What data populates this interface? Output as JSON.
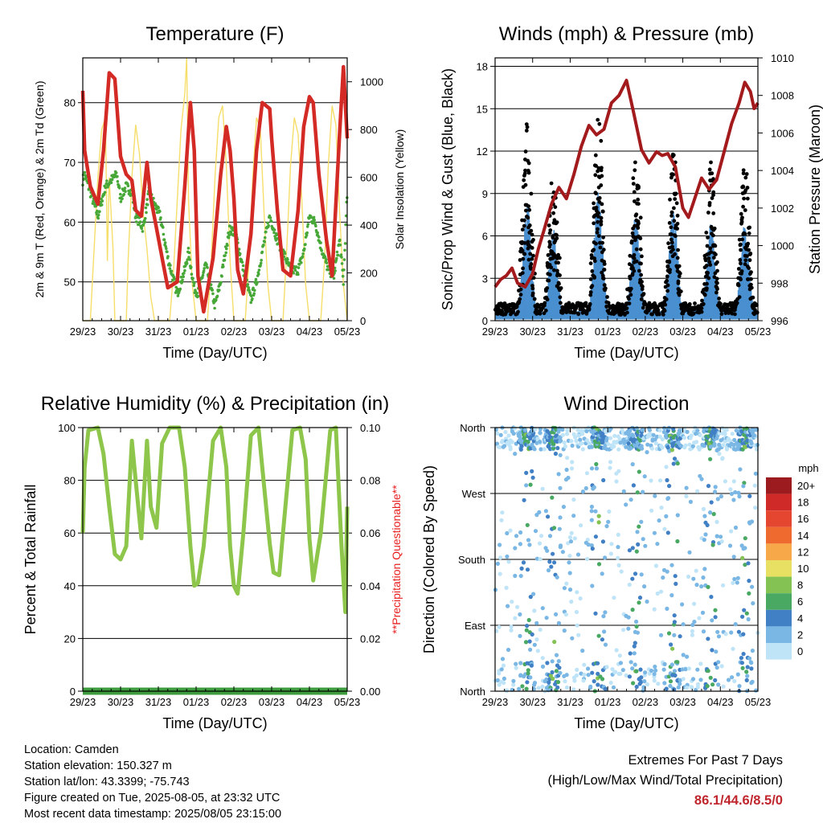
{
  "footer": {
    "location": "Location: Camden",
    "elevation": "Station elevation: 150.327 m",
    "latlon": "Station lat/lon: 43.3399; -75.743",
    "created": "Figure created on Tue, 2025-08-05, at 23:32 UTC",
    "recent": "Most recent data timestamp: 2025/08/05 23:15:00"
  },
  "extremes": {
    "title": "Extremes For Past 7 Days",
    "subtitle": "(High/Low/Max Wind/Total Precipitation)",
    "values": "86.1/44.6/8.5/0"
  },
  "chart_data": [
    {
      "type": "line",
      "title": "Temperature (F)",
      "xlabel": "Time (Day/UTC)",
      "ylabel": "2m & 9m T (Red, Orange) & 2m Td (Green)",
      "ylabel_right": "Solar Insolation (Yellow)",
      "x_ticks": [
        "29/23",
        "30/23",
        "31/23",
        "01/23",
        "02/23",
        "03/23",
        "04/23",
        "05/23"
      ],
      "xlim": [
        0,
        7
      ],
      "ylim": [
        43.5,
        87.5
      ],
      "y_ticks": [
        50,
        60,
        70,
        80
      ],
      "ylim_right": [
        0,
        1100
      ],
      "y_ticks_right": [
        0,
        200,
        400,
        600,
        800,
        1000
      ],
      "grid": "horizontal",
      "series": [
        {
          "name": "2m & 9m T",
          "color": "#d42a25",
          "x": [
            0,
            0.05,
            0.2,
            0.4,
            0.55,
            0.7,
            0.85,
            1.0,
            1.15,
            1.3,
            1.4,
            1.55,
            1.7,
            1.8,
            1.95,
            2.1,
            2.25,
            2.5,
            2.7,
            2.85,
            2.95,
            3.05,
            3.2,
            3.45,
            3.65,
            3.8,
            3.9,
            4.0,
            4.1,
            4.25,
            4.45,
            4.6,
            4.75,
            4.95,
            5.0,
            5.15,
            5.3,
            5.5,
            5.7,
            5.85,
            6.0,
            6.1,
            6.25,
            6.45,
            6.6,
            6.8,
            6.9,
            7.0
          ],
          "y": [
            82,
            72,
            66,
            63,
            72,
            85,
            84,
            71,
            68,
            67,
            62,
            61,
            70,
            64,
            59,
            54,
            49,
            50,
            66,
            80,
            72,
            51,
            45,
            54,
            68,
            76,
            72,
            64,
            52,
            48,
            58,
            72,
            80,
            79,
            74,
            62,
            52,
            51,
            62,
            76,
            81,
            80,
            68,
            57,
            51,
            75,
            86,
            74
          ]
        },
        {
          "name": "2m Td",
          "color": "#47a838",
          "x": [
            0,
            0.05,
            0.2,
            0.4,
            0.6,
            0.75,
            0.9,
            1.0,
            1.15,
            1.3,
            1.4,
            1.6,
            1.75,
            1.9,
            2.05,
            2.25,
            2.5,
            2.7,
            2.8,
            2.95,
            3.05,
            3.25,
            3.5,
            3.65,
            3.8,
            3.9,
            4.05,
            4.25,
            4.45,
            4.6,
            4.75,
            4.95,
            5.0,
            5.15,
            5.3,
            5.5,
            5.7,
            5.85,
            6.0,
            6.15,
            6.3,
            6.5,
            6.65,
            6.8,
            6.9,
            7.0
          ],
          "y": [
            67,
            68,
            65,
            61,
            66,
            67,
            68,
            64,
            66,
            65,
            61,
            59,
            65,
            63,
            61,
            54,
            48,
            52,
            55,
            49,
            48,
            53,
            46,
            50,
            56,
            59,
            58,
            52,
            47,
            50,
            55,
            61,
            60,
            57,
            55,
            52,
            52,
            55,
            61,
            60,
            56,
            52,
            51,
            57,
            50,
            65
          ]
        },
        {
          "name": "Solar Insolation",
          "color": "#f6de6a",
          "axis": "right",
          "x": [
            0,
            0.15,
            0.2,
            0.3,
            0.4,
            0.5,
            0.6,
            0.65,
            0.7,
            0.8,
            0.85,
            1.0,
            1.15,
            1.2,
            1.3,
            1.4,
            1.5,
            1.6,
            1.7,
            1.8,
            1.9,
            2.0,
            2.2,
            2.3,
            2.4,
            2.5,
            2.6,
            2.7,
            2.75,
            2.8,
            2.9,
            3.0,
            3.2,
            3.3,
            3.4,
            3.5,
            3.6,
            3.7,
            3.8,
            3.9,
            4.0,
            4.2,
            4.3,
            4.4,
            4.5,
            4.6,
            4.7,
            4.8,
            4.9,
            5.0,
            5.2,
            5.3,
            5.4,
            5.5,
            5.6,
            5.7,
            5.8,
            5.9,
            6.0,
            6.2,
            6.3,
            6.4,
            6.5,
            6.6,
            6.7,
            6.8,
            6.9,
            7.0
          ],
          "y": [
            0,
            0,
            0,
            300,
            600,
            800,
            850,
            250,
            600,
            300,
            0,
            0,
            0,
            250,
            600,
            820,
            700,
            450,
            300,
            100,
            0,
            0,
            0,
            0,
            200,
            500,
            800,
            950,
            1100,
            500,
            150,
            0,
            0,
            0,
            250,
            600,
            850,
            900,
            650,
            250,
            0,
            0,
            0,
            250,
            600,
            850,
            800,
            450,
            150,
            0,
            0,
            0,
            300,
            650,
            850,
            780,
            500,
            150,
            0,
            0,
            0,
            250,
            650,
            900,
            820,
            450,
            150,
            0
          ]
        }
      ]
    },
    {
      "type": "scatter",
      "title": "Winds (mph) & Pressure (mb)",
      "xlabel": "Time (Day/UTC)",
      "ylabel": "Sonic/Prop Wind & Gust (Blue, Black)",
      "ylabel_right": "Station Pressure (Maroon)",
      "x_ticks": [
        "29/23",
        "30/23",
        "31/23",
        "01/23",
        "02/23",
        "03/23",
        "04/23",
        "05/23"
      ],
      "xlim": [
        0,
        7
      ],
      "ylim": [
        0,
        18.6
      ],
      "y_ticks": [
        0,
        3,
        6,
        9,
        12,
        15,
        18
      ],
      "ylim_right": [
        996,
        1010
      ],
      "y_ticks_right": [
        996,
        998,
        1000,
        1002,
        1004,
        1006,
        1008,
        1010
      ],
      "grid": "horizontal",
      "diurnal_peaks_gust": [
        {
          "x": 0.85,
          "y": 13.5
        },
        {
          "x": 1.55,
          "y": 10.5
        },
        {
          "x": 2.75,
          "y": 14.5
        },
        {
          "x": 3.75,
          "y": 12
        },
        {
          "x": 4.75,
          "y": 12.5
        },
        {
          "x": 5.75,
          "y": 11
        },
        {
          "x": 6.65,
          "y": 11
        }
      ],
      "series": [
        {
          "name": "Gust",
          "color": "#000000"
        },
        {
          "name": "Sonic/Prop Wind",
          "color": "#4a90d0"
        },
        {
          "name": "Station Pressure",
          "color": "#a31a1c",
          "axis": "right",
          "x": [
            0,
            0.15,
            0.3,
            0.45,
            0.6,
            0.8,
            1.0,
            1.15,
            1.3,
            1.5,
            1.7,
            1.9,
            2.1,
            2.3,
            2.5,
            2.7,
            2.9,
            3.1,
            3.3,
            3.5,
            3.7,
            3.9,
            4.1,
            4.3,
            4.45,
            4.6,
            4.8,
            5.0,
            5.15,
            5.3,
            5.5,
            5.7,
            5.9,
            6.1,
            6.3,
            6.5,
            6.65,
            6.8,
            6.9,
            7.0
          ],
          "y": [
            997.8,
            998.2,
            998.4,
            998.8,
            998.0,
            997.8,
            998.5,
            999.8,
            1000.8,
            1002.2,
            1003.1,
            1002.5,
            1003.8,
            1005.3,
            1006.4,
            1005.9,
            1006.2,
            1007.6,
            1008.0,
            1008.8,
            1007.0,
            1005.1,
            1004.4,
            1005.0,
            1004.8,
            1004.9,
            1004.2,
            1002.0,
            1001.5,
            1002.4,
            1003.6,
            1003.0,
            1003.5,
            1005.0,
            1006.5,
            1007.6,
            1008.7,
            1008.2,
            1007.3,
            1007.6
          ]
        }
      ]
    },
    {
      "type": "line",
      "title": "Relative Humidity (%) & Precipitation (in)",
      "xlabel": "Time (Day/UTC)",
      "ylabel": "Percent & Total Rainfall",
      "ylabel_right": "**Precipitation Questionable**",
      "x_ticks": [
        "29/23",
        "30/23",
        "31/23",
        "01/23",
        "02/23",
        "03/23",
        "04/23",
        "05/23"
      ],
      "xlim": [
        0,
        7
      ],
      "ylim": [
        0,
        100
      ],
      "y_ticks": [
        0,
        20,
        40,
        60,
        80,
        100
      ],
      "ylim_right": [
        0,
        0.1
      ],
      "y_ticks_right": [
        "0.00",
        "0.02",
        "0.04",
        "0.06",
        "0.08",
        "0.10"
      ],
      "grid": "horizontal",
      "series": [
        {
          "name": "Relative Humidity",
          "color": "#8ec64c",
          "x": [
            0,
            0.05,
            0.15,
            0.4,
            0.55,
            0.7,
            0.85,
            1.0,
            1.15,
            1.3,
            1.4,
            1.55,
            1.7,
            1.8,
            1.95,
            2.1,
            2.3,
            2.55,
            2.7,
            2.85,
            2.95,
            3.05,
            3.2,
            3.45,
            3.65,
            3.8,
            3.9,
            4.0,
            4.1,
            4.25,
            4.45,
            4.65,
            4.75,
            4.95,
            5.05,
            5.2,
            5.3,
            5.55,
            5.75,
            5.9,
            6.0,
            6.1,
            6.3,
            6.55,
            6.7,
            6.85,
            6.95,
            7.0
          ],
          "y": [
            60,
            85,
            99,
            100,
            90,
            70,
            52,
            50,
            55,
            95,
            80,
            58,
            95,
            70,
            62,
            94,
            100,
            100,
            85,
            55,
            40,
            41,
            55,
            95,
            100,
            85,
            55,
            40,
            37,
            60,
            97,
            100,
            85,
            56,
            45,
            44,
            60,
            99,
            100,
            88,
            58,
            42,
            60,
            99,
            100,
            55,
            30,
            70
          ]
        },
        {
          "name": "Total Rainfall",
          "color": "#3e9b3e",
          "axis": "right",
          "x": [
            0,
            7
          ],
          "y": [
            0,
            0
          ]
        }
      ]
    },
    {
      "type": "scatter",
      "title": "Wind Direction",
      "xlabel": "Time (Day/UTC)",
      "ylabel": "Direction (Colored By Speed)",
      "x_ticks": [
        "29/23",
        "30/23",
        "31/23",
        "01/23",
        "02/23",
        "03/23",
        "04/23",
        "05/23"
      ],
      "xlim": [
        0,
        7
      ],
      "y_ticks": [
        "North",
        "East",
        "South",
        "West",
        "North"
      ],
      "ylim": [
        0,
        360
      ],
      "grid": "horizontal",
      "legend": {
        "title": "mph",
        "placement": "right",
        "labels": [
          "20+",
          "18",
          "16",
          "14",
          "12",
          "10",
          "8",
          "6",
          "4",
          "2",
          "0"
        ],
        "colors": [
          "#9b1b1f",
          "#cf2a27",
          "#e44630",
          "#ef6a2e",
          "#f7a949",
          "#e8e062",
          "#84c253",
          "#49a862",
          "#4180c4",
          "#7ab7e4",
          "#bfe4f7"
        ]
      },
      "series": [
        {
          "name": "Direction",
          "colored_by": "speed"
        }
      ]
    }
  ]
}
